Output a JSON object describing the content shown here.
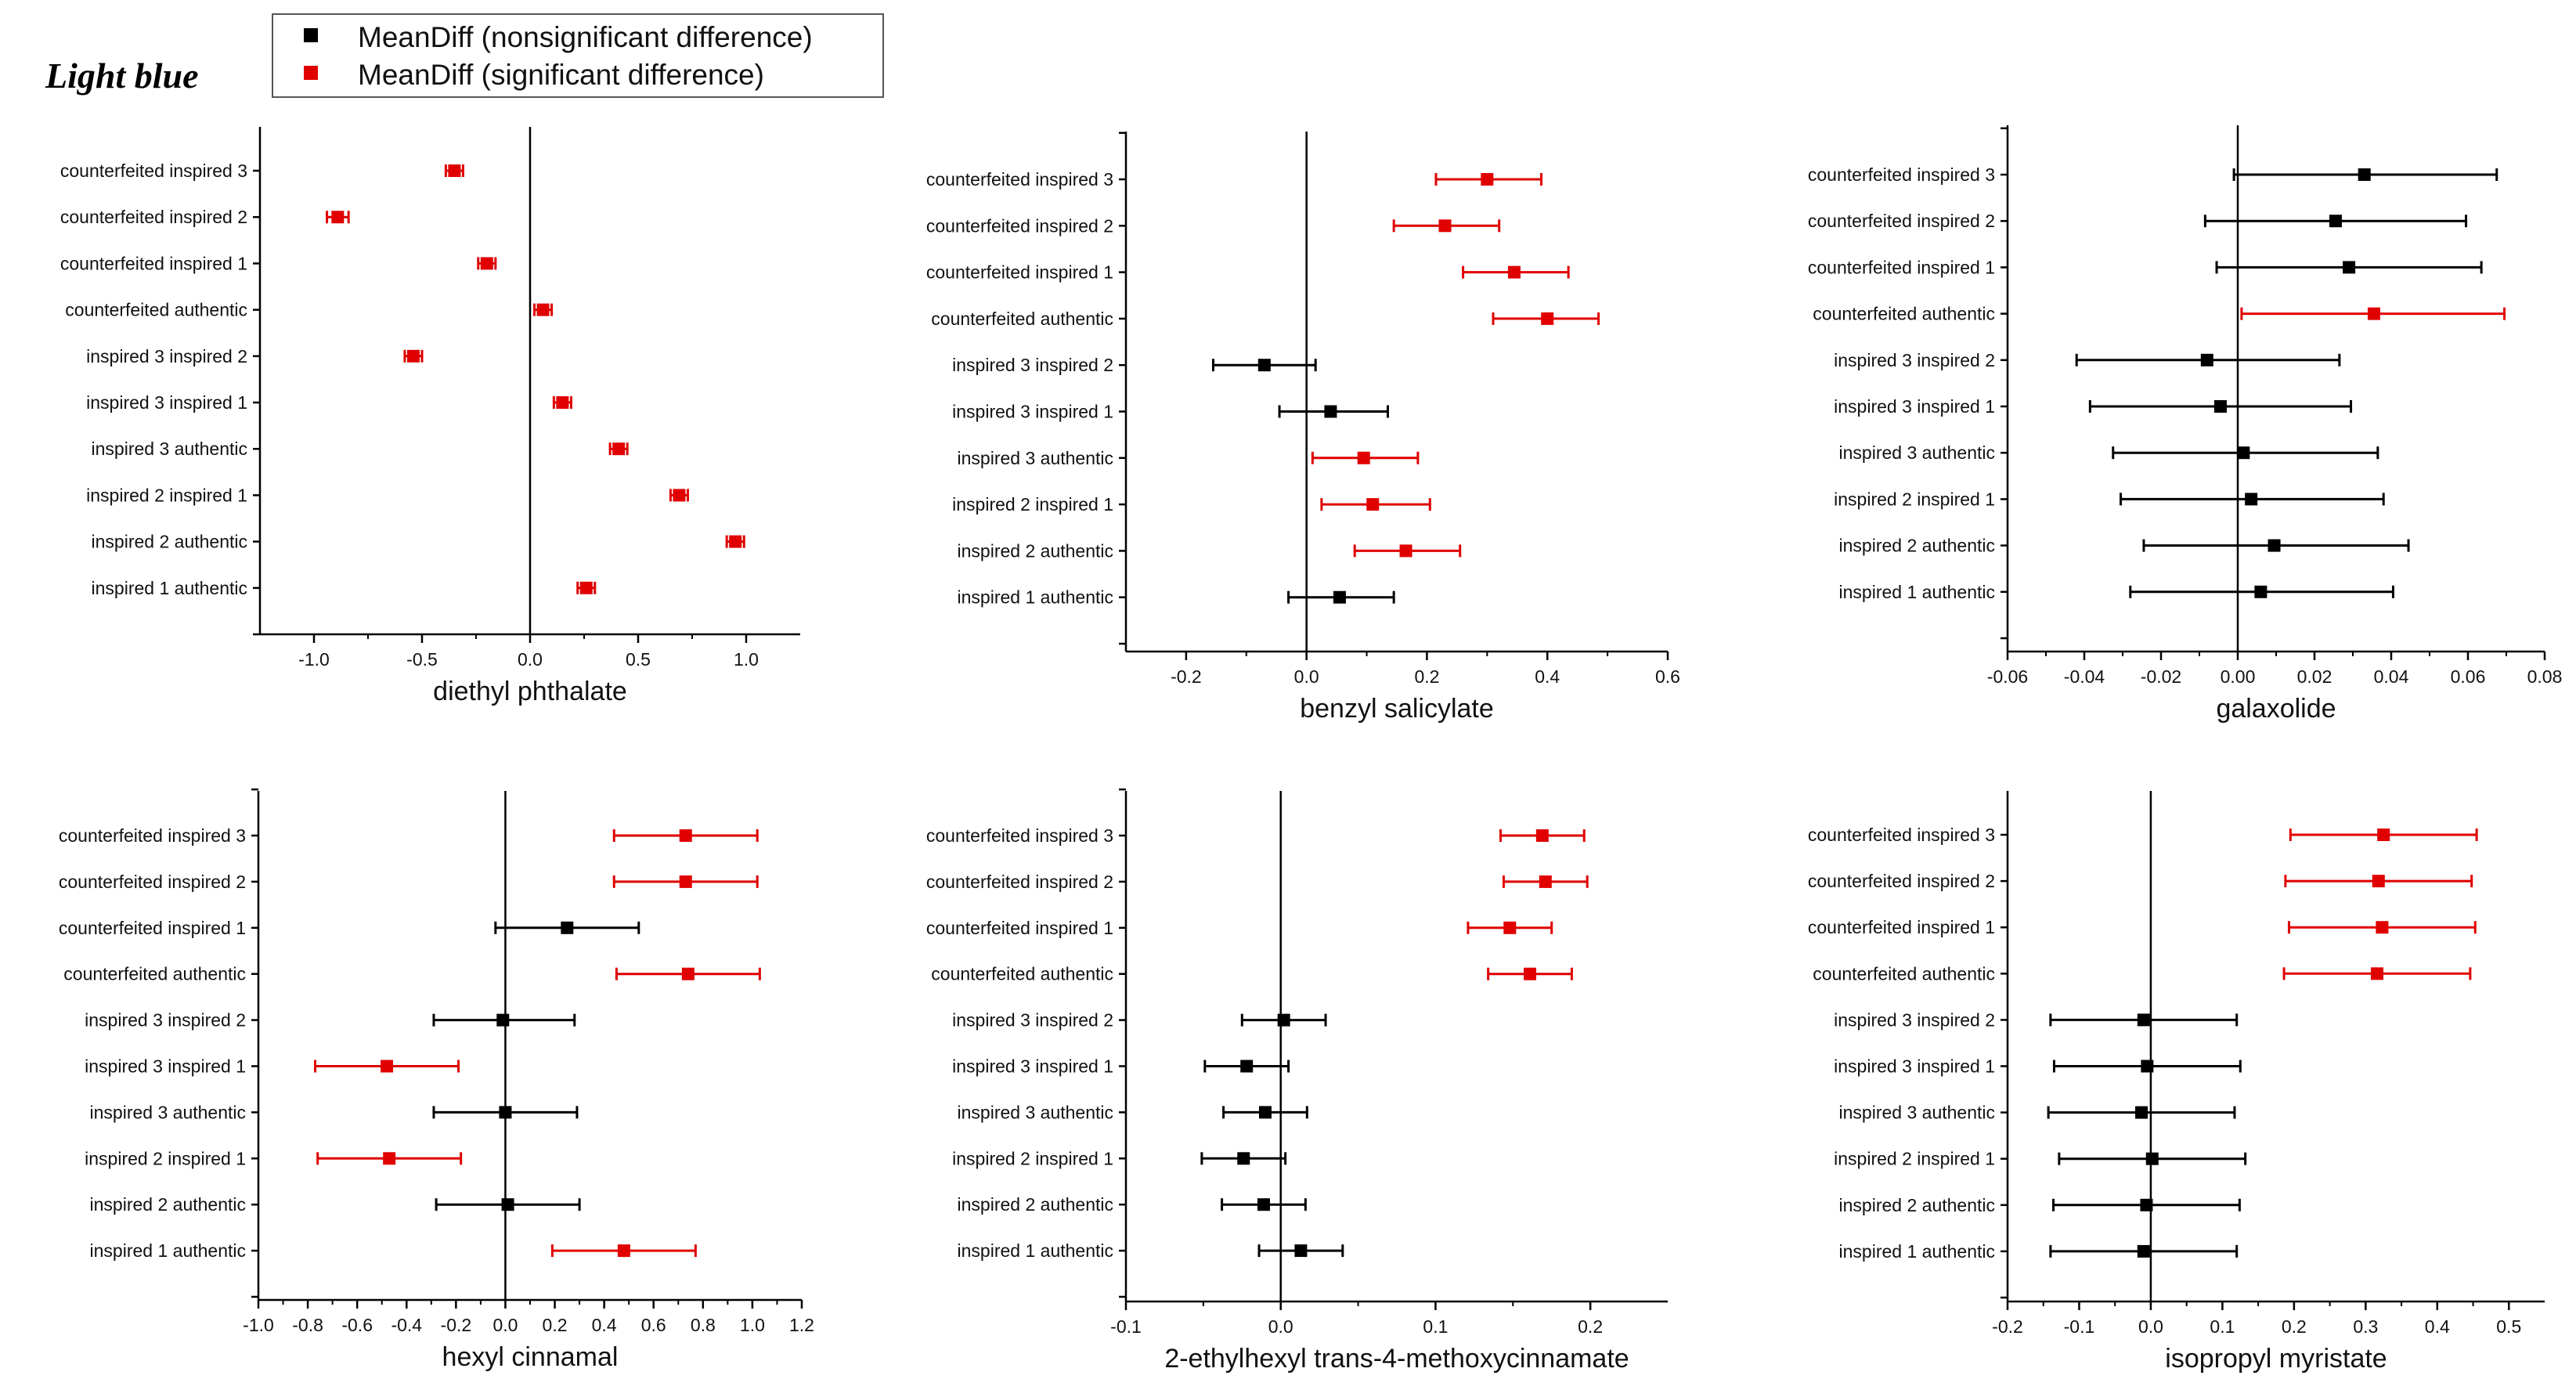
{
  "heading": "Light blue",
  "legend": {
    "items": [
      {
        "label": "MeanDiff (nonsignificant difference)",
        "color": "#000000"
      },
      {
        "label": "MeanDiff (significant difference)",
        "color": "#e00000"
      }
    ]
  },
  "colors": {
    "nonsignificant": "#000000",
    "significant": "#e00000",
    "axis": "#000000"
  },
  "chart_data": [
    {
      "type": "scatter",
      "title": "diethyl phthalate",
      "xlabel": "diethyl phthalate",
      "ylabel": "",
      "xlim": [
        -1.25,
        1.25
      ],
      "xticks": [
        -1.0,
        -0.5,
        0.0,
        0.5,
        1.0
      ],
      "xtick_labels": [
        "-1.0",
        "-0.5",
        "0.0",
        "0.5",
        "1.0"
      ],
      "categories": [
        "counterfeited  inspired 3",
        "counterfeited  inspired 2",
        "counterfeited  inspired 1",
        "counterfeited  authentic",
        "inspired 3  inspired 2",
        "inspired 3  inspired 1",
        "inspired 3  authentic",
        "inspired 2  inspired 1",
        "inspired 2  authentic",
        "inspired 1  authentic"
      ],
      "mean": [
        -0.35,
        -0.89,
        -0.2,
        0.06,
        -0.54,
        0.15,
        0.41,
        0.69,
        0.95,
        0.26
      ],
      "ci_low": [
        -0.39,
        -0.94,
        -0.24,
        0.02,
        -0.58,
        0.11,
        0.37,
        0.65,
        0.91,
        0.22
      ],
      "ci_high": [
        -0.31,
        -0.84,
        -0.16,
        0.1,
        -0.5,
        0.19,
        0.45,
        0.73,
        0.99,
        0.3
      ],
      "significant": [
        true,
        true,
        true,
        true,
        true,
        true,
        true,
        true,
        true,
        true
      ]
    },
    {
      "type": "scatter",
      "title": "benzyl salicylate",
      "xlabel": "benzyl salicylate",
      "ylabel": "",
      "xlim": [
        -0.3,
        0.6
      ],
      "xticks": [
        -0.2,
        0.0,
        0.2,
        0.4,
        0.6
      ],
      "xtick_labels": [
        "-0.2",
        "0.0",
        "0.2",
        "0.4",
        "0.6"
      ],
      "categories": [
        "counterfeited  inspired 3",
        "counterfeited  inspired 2",
        "counterfeited  inspired 1",
        "counterfeited  authentic",
        "inspired 3  inspired 2",
        "inspired 3  inspired 1",
        "inspired 3  authentic",
        "inspired 2  inspired 1",
        "inspired 2  authentic",
        "inspired 1  authentic"
      ],
      "mean": [
        0.3,
        0.23,
        0.345,
        0.4,
        -0.07,
        0.04,
        0.095,
        0.11,
        0.165,
        0.055
      ],
      "ci_low": [
        0.215,
        0.145,
        0.26,
        0.31,
        -0.155,
        -0.045,
        0.01,
        0.025,
        0.08,
        -0.03
      ],
      "ci_high": [
        0.39,
        0.32,
        0.435,
        0.485,
        0.015,
        0.135,
        0.185,
        0.205,
        0.255,
        0.145
      ],
      "significant": [
        true,
        true,
        true,
        true,
        false,
        false,
        true,
        true,
        true,
        false
      ]
    },
    {
      "type": "scatter",
      "title": "galaxolide",
      "xlabel": "galaxolide",
      "ylabel": "",
      "xlim": [
        -0.06,
        0.08
      ],
      "xticks": [
        -0.06,
        -0.04,
        -0.02,
        0.0,
        0.02,
        0.04,
        0.06,
        0.08
      ],
      "xtick_labels": [
        "-0.06",
        "-0.04",
        "-0.02",
        "0.00",
        "0.02",
        "0.04",
        "0.06",
        "0.08"
      ],
      "categories": [
        "counterfeited  inspired 3",
        "counterfeited  inspired 2",
        "counterfeited  inspired 1",
        "counterfeited  authentic",
        "inspired 3  inspired 2",
        "inspired 3  inspired 1",
        "inspired 3  authentic",
        "inspired 2  inspired 1",
        "inspired 2  authentic",
        "inspired 1  authentic"
      ],
      "mean": [
        0.033,
        0.0255,
        0.029,
        0.0355,
        -0.008,
        -0.0045,
        0.0015,
        0.0035,
        0.0095,
        0.006
      ],
      "ci_low": [
        -0.001,
        -0.0085,
        -0.0055,
        0.001,
        -0.042,
        -0.0385,
        -0.0325,
        -0.0305,
        -0.0245,
        -0.028
      ],
      "ci_high": [
        0.0675,
        0.0595,
        0.0635,
        0.0695,
        0.0265,
        0.0295,
        0.0365,
        0.038,
        0.0445,
        0.0405
      ],
      "significant": [
        false,
        false,
        false,
        true,
        false,
        false,
        false,
        false,
        false,
        false
      ]
    },
    {
      "type": "scatter",
      "title": "hexyl cinnamal",
      "xlabel": "hexyl cinnamal",
      "ylabel": "",
      "xlim": [
        -1.0,
        1.2
      ],
      "xticks": [
        -1.0,
        -0.8,
        -0.6,
        -0.4,
        -0.2,
        0.0,
        0.2,
        0.4,
        0.6,
        0.8,
        1.0,
        1.2
      ],
      "xtick_labels": [
        "-1.0",
        "-0.8",
        "-0.6",
        "-0.4",
        "-0.2",
        "0.0",
        "0.2",
        "0.4",
        "0.6",
        "0.8",
        "1.0",
        "1.2"
      ],
      "categories": [
        "counterfeited  inspired 3",
        "counterfeited  inspired 2",
        "counterfeited  inspired 1",
        "counterfeited  authentic",
        "inspired 3  inspired 2",
        "inspired 3  inspired 1",
        "inspired 3  authentic",
        "inspired 2  inspired 1",
        "inspired 2  authentic",
        "inspired 1  authentic"
      ],
      "mean": [
        0.73,
        0.73,
        0.25,
        0.74,
        -0.01,
        -0.48,
        0.0,
        -0.47,
        0.01,
        0.48
      ],
      "ci_low": [
        0.44,
        0.44,
        -0.04,
        0.45,
        -0.29,
        -0.77,
        -0.29,
        -0.76,
        -0.28,
        0.19
      ],
      "ci_high": [
        1.02,
        1.02,
        0.54,
        1.03,
        0.28,
        -0.19,
        0.29,
        -0.18,
        0.3,
        0.77
      ],
      "significant": [
        true,
        true,
        false,
        true,
        false,
        true,
        false,
        true,
        false,
        true
      ]
    },
    {
      "type": "scatter",
      "title": "2-ethylhexyl trans-4-methoxycinnamate",
      "xlabel": "2-ethylhexyl trans-4-methoxycinnamate",
      "ylabel": "",
      "xlim": [
        -0.1,
        0.25
      ],
      "xticks": [
        -0.1,
        0.0,
        0.1,
        0.2
      ],
      "xtick_labels": [
        "-0.1",
        "0.0",
        "0.1",
        "0.2"
      ],
      "categories": [
        "counterfeited  inspired 3",
        "counterfeited  inspired 2",
        "counterfeited  inspired 1",
        "counterfeited  authentic",
        "inspired 3  inspired 2",
        "inspired 3  inspired 1",
        "inspired 3  authentic",
        "inspired 2  inspired 1",
        "inspired 2  authentic",
        "inspired 1  authentic"
      ],
      "mean": [
        0.169,
        0.171,
        0.148,
        0.161,
        0.002,
        -0.022,
        -0.01,
        -0.024,
        -0.011,
        0.013
      ],
      "ci_low": [
        0.142,
        0.144,
        0.121,
        0.134,
        -0.025,
        -0.049,
        -0.037,
        -0.051,
        -0.038,
        -0.014
      ],
      "ci_high": [
        0.196,
        0.198,
        0.175,
        0.188,
        0.029,
        0.005,
        0.017,
        0.003,
        0.016,
        0.04
      ],
      "significant": [
        true,
        true,
        true,
        true,
        false,
        false,
        false,
        false,
        false,
        false
      ]
    },
    {
      "type": "scatter",
      "title": "isopropyl myristate",
      "xlabel": "isopropyl myristate",
      "ylabel": "",
      "xlim": [
        -0.2,
        0.55
      ],
      "xticks": [
        -0.2,
        -0.1,
        0.0,
        0.1,
        0.2,
        0.3,
        0.4,
        0.5
      ],
      "xtick_labels": [
        "-0.2",
        "-0.1",
        "0.0",
        "0.1",
        "0.2",
        "0.3",
        "0.4",
        "0.5"
      ],
      "categories": [
        "counterfeited  inspired 3",
        "counterfeited  inspired 2",
        "counterfeited  inspired 1",
        "counterfeited  authentic",
        "inspired 3  inspired 2",
        "inspired 3  inspired 1",
        "inspired 3  authentic",
        "inspired 2  inspired 1",
        "inspired 2  authentic",
        "inspired 1  authentic"
      ],
      "mean": [
        0.325,
        0.318,
        0.323,
        0.316,
        -0.01,
        -0.005,
        -0.013,
        0.002,
        -0.006,
        -0.01
      ],
      "ci_low": [
        0.195,
        0.188,
        0.193,
        0.186,
        -0.14,
        -0.135,
        -0.143,
        -0.128,
        -0.136,
        -0.14
      ],
      "ci_high": [
        0.455,
        0.448,
        0.453,
        0.446,
        0.12,
        0.125,
        0.117,
        0.132,
        0.124,
        0.12
      ],
      "significant": [
        true,
        true,
        true,
        true,
        false,
        false,
        false,
        false,
        false,
        false
      ]
    }
  ]
}
